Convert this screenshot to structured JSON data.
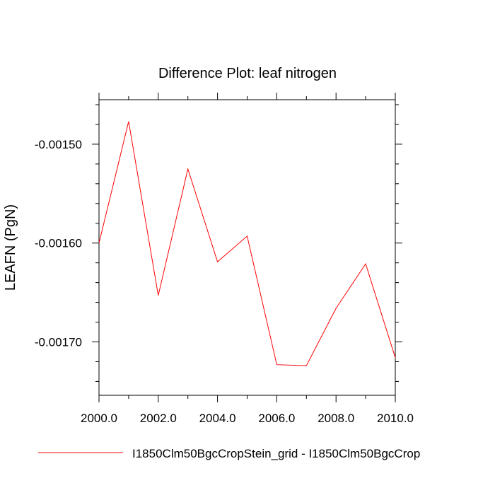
{
  "chart_data": {
    "type": "line",
    "title": "Difference Plot: leaf nitrogen",
    "xlabel": "",
    "ylabel": "LEAFN  (PgN)",
    "xlim": [
      2000.0,
      2010.0
    ],
    "ylim": [
      -0.001754,
      -0.001455
    ],
    "x_ticks": [
      2000.0,
      2002.0,
      2004.0,
      2006.0,
      2008.0,
      2010.0
    ],
    "x_tick_labels": [
      "2000.0",
      "2002.0",
      "2004.0",
      "2006.0",
      "2008.0",
      "2010.0"
    ],
    "y_ticks": [
      -0.0015,
      -0.0016,
      -0.0017
    ],
    "y_tick_labels": [
      "-0.00150",
      "-0.00160",
      "-0.00170"
    ],
    "grid": false,
    "legend_position": "bottom",
    "series": [
      {
        "name": "I1850Clm50BgcCropStein_grid - I1850Clm50BgcCrop",
        "color": "#ff0000",
        "x": [
          2000,
          2001,
          2002,
          2003,
          2004,
          2005,
          2006,
          2007,
          2008,
          2009,
          2010
        ],
        "y": [
          -0.0016,
          -0.001477,
          -0.001653,
          -0.001525,
          -0.001619,
          -0.001593,
          -0.001723,
          -0.001724,
          -0.001666,
          -0.001621,
          -0.001716
        ]
      }
    ]
  }
}
